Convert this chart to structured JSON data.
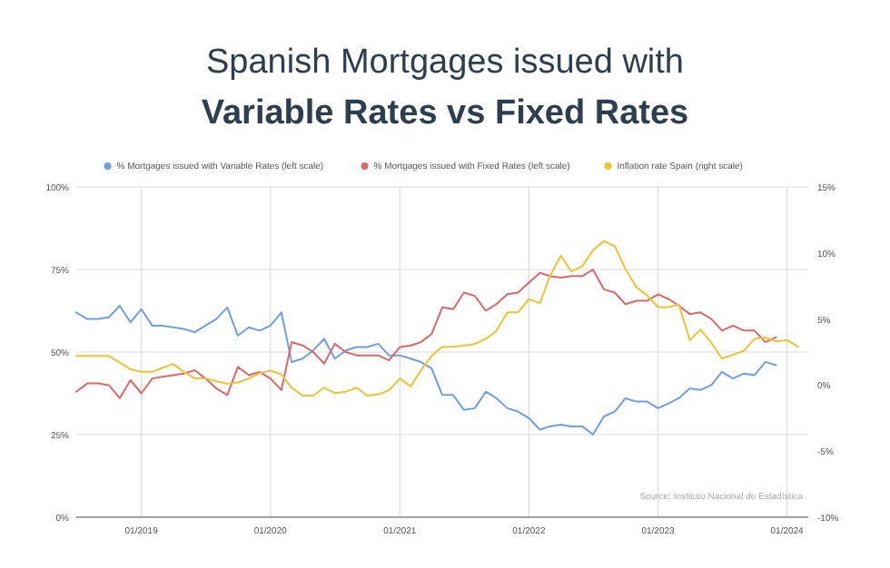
{
  "chart_data": {
    "type": "line",
    "title": "Spanish Mortgages issued with",
    "subtitle": "Variable Rates vs  Fixed Rates",
    "x": [
      "2018-07",
      "2018-08",
      "2018-09",
      "2018-10",
      "2018-11",
      "2018-12",
      "2019-01",
      "2019-02",
      "2019-03",
      "2019-04",
      "2019-05",
      "2019-06",
      "2019-07",
      "2019-08",
      "2019-09",
      "2019-10",
      "2019-11",
      "2019-12",
      "2020-01",
      "2020-02",
      "2020-03",
      "2020-04",
      "2020-05",
      "2020-06",
      "2020-07",
      "2020-08",
      "2020-09",
      "2020-10",
      "2020-11",
      "2020-12",
      "2021-01",
      "2021-02",
      "2021-03",
      "2021-04",
      "2021-05",
      "2021-06",
      "2021-07",
      "2021-08",
      "2021-09",
      "2021-10",
      "2021-11",
      "2021-12",
      "2022-01",
      "2022-02",
      "2022-03",
      "2022-04",
      "2022-05",
      "2022-06",
      "2022-07",
      "2022-08",
      "2022-09",
      "2022-10",
      "2022-11",
      "2022-12",
      "2023-01",
      "2023-02",
      "2023-03",
      "2023-04",
      "2023-05",
      "2023-06",
      "2023-07",
      "2023-08",
      "2023-09",
      "2023-10",
      "2023-11",
      "2023-12",
      "2024-01",
      "2024-02"
    ],
    "series": [
      {
        "name": "% Mortgages issued with Variable Rates (left scale)",
        "color": "#6d9eeb",
        "values": [
          62,
          60,
          60,
          60.5,
          64,
          59,
          63,
          58,
          58,
          57.5,
          57,
          56,
          58,
          60,
          63.5,
          55,
          57.5,
          56.5,
          58,
          62,
          47,
          48,
          50.5,
          54,
          48,
          50.5,
          51.5,
          51.5,
          52.5,
          49,
          49,
          48,
          47,
          45,
          37,
          37,
          32.5,
          33,
          38,
          36,
          33,
          32,
          30,
          26.5,
          27.5,
          28,
          27.5,
          27.5,
          25,
          30.5,
          32,
          36,
          35,
          35,
          33,
          34.5,
          36,
          39,
          38.5,
          40,
          44,
          42,
          43.5,
          43,
          47,
          46,
          null,
          null
        ]
      },
      {
        "name": "% Mortgages issued with Fixed Rates (left scale)",
        "color": "#e06666",
        "values": [
          38,
          40.5,
          40.5,
          40,
          36,
          41.5,
          37.5,
          42,
          42.5,
          43,
          43.5,
          44.5,
          42,
          39,
          37,
          45.5,
          43,
          44,
          42,
          38.5,
          53,
          52,
          50,
          46.5,
          52.5,
          50,
          49,
          49,
          49,
          47.5,
          51.5,
          52,
          53,
          55.5,
          63.5,
          63,
          68,
          67,
          62.5,
          64.5,
          67.5,
          68,
          71,
          74,
          73,
          72.5,
          73,
          73,
          75,
          69,
          68,
          64.5,
          65.5,
          65.5,
          67.5,
          66,
          64,
          61.5,
          62,
          60,
          56.5,
          58,
          56.5,
          56.5,
          53,
          54.5,
          null,
          null
        ]
      },
      {
        "name": "Inflation rate Spain (right scale)",
        "color": "#f1c232",
        "axis": "y2",
        "values": [
          2.2,
          2.2,
          2.2,
          2.2,
          1.7,
          1.2,
          1,
          1,
          1.3,
          1.6,
          1,
          0.5,
          0.5,
          0.3,
          0.1,
          0.2,
          0.5,
          0.9,
          1.1,
          0.8,
          -0.2,
          -0.8,
          -0.8,
          -0.2,
          -0.6,
          -0.5,
          -0.2,
          -0.8,
          -0.7,
          -0.4,
          0.5,
          -0.1,
          1.1,
          2.2,
          2.9,
          2.9,
          3,
          3.1,
          3.5,
          4.1,
          5.5,
          5.5,
          6.5,
          6.2,
          8.2,
          9.8,
          8.6,
          9,
          10.2,
          10.9,
          10.5,
          8.8,
          7.4,
          6.8,
          5.9,
          5.9,
          6.1,
          3.4,
          4.2,
          3.2,
          2,
          2.3,
          2.6,
          3.5,
          3.6,
          3.3,
          3.4,
          2.9
        ]
      }
    ],
    "xlim": [
      "2018-07",
      "2024-03"
    ],
    "xticks": [
      {
        "value": "2019-01",
        "label": "01/2019"
      },
      {
        "value": "2020-01",
        "label": "01/2020"
      },
      {
        "value": "2021-01",
        "label": "01/2021"
      },
      {
        "value": "2022-01",
        "label": "01/2022"
      },
      {
        "value": "2023-01",
        "label": "01/2023"
      },
      {
        "value": "2024-01",
        "label": "01/2024"
      }
    ],
    "ylim": [
      0,
      100
    ],
    "yticks": [
      {
        "value": 0,
        "label": "0%"
      },
      {
        "value": 25,
        "label": "25%"
      },
      {
        "value": 50,
        "label": "50%"
      },
      {
        "value": 75,
        "label": "75%"
      },
      {
        "value": 100,
        "label": "100%"
      }
    ],
    "y2lim": [
      -10,
      15
    ],
    "y2ticks": [
      {
        "value": -10,
        "label": "-10%"
      },
      {
        "value": -5,
        "label": "-5%"
      },
      {
        "value": 0,
        "label": "0%"
      },
      {
        "value": 5,
        "label": "5%"
      },
      {
        "value": 10,
        "label": "10%"
      },
      {
        "value": 15,
        "label": "15%"
      }
    ],
    "grid": true,
    "legend": "top",
    "marker": "none",
    "line_style": "solid",
    "annotations": [
      "Source: Instituto Nacional de Estadística"
    ]
  }
}
